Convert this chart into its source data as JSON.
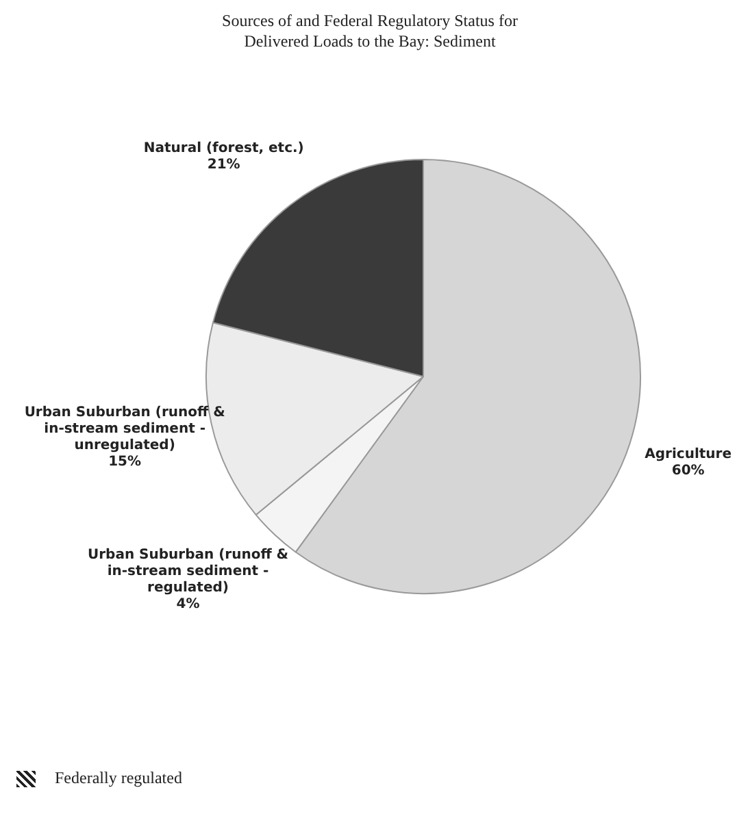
{
  "chart_data": {
    "type": "pie",
    "title": "Sources of and Federal Regulatory Status for Delivered Loads to the Bay: Sediment",
    "categories": [
      "Agriculture",
      "Urban Suburban (runoff & in-stream sediment - regulated)",
      "Urban Suburban (runoff & in-stream sediment - unregulated)",
      "Natural (forest, etc.)"
    ],
    "values": [
      60,
      4,
      15,
      21
    ],
    "colors": [
      "#d6d6d6",
      "#f4f4f4",
      "#ececec",
      "#3a3a3a"
    ],
    "value_labels": [
      "60%",
      "4%",
      "15%",
      "21%"
    ],
    "legend": false,
    "annotations": [
      "Federally regulated"
    ]
  }
}
